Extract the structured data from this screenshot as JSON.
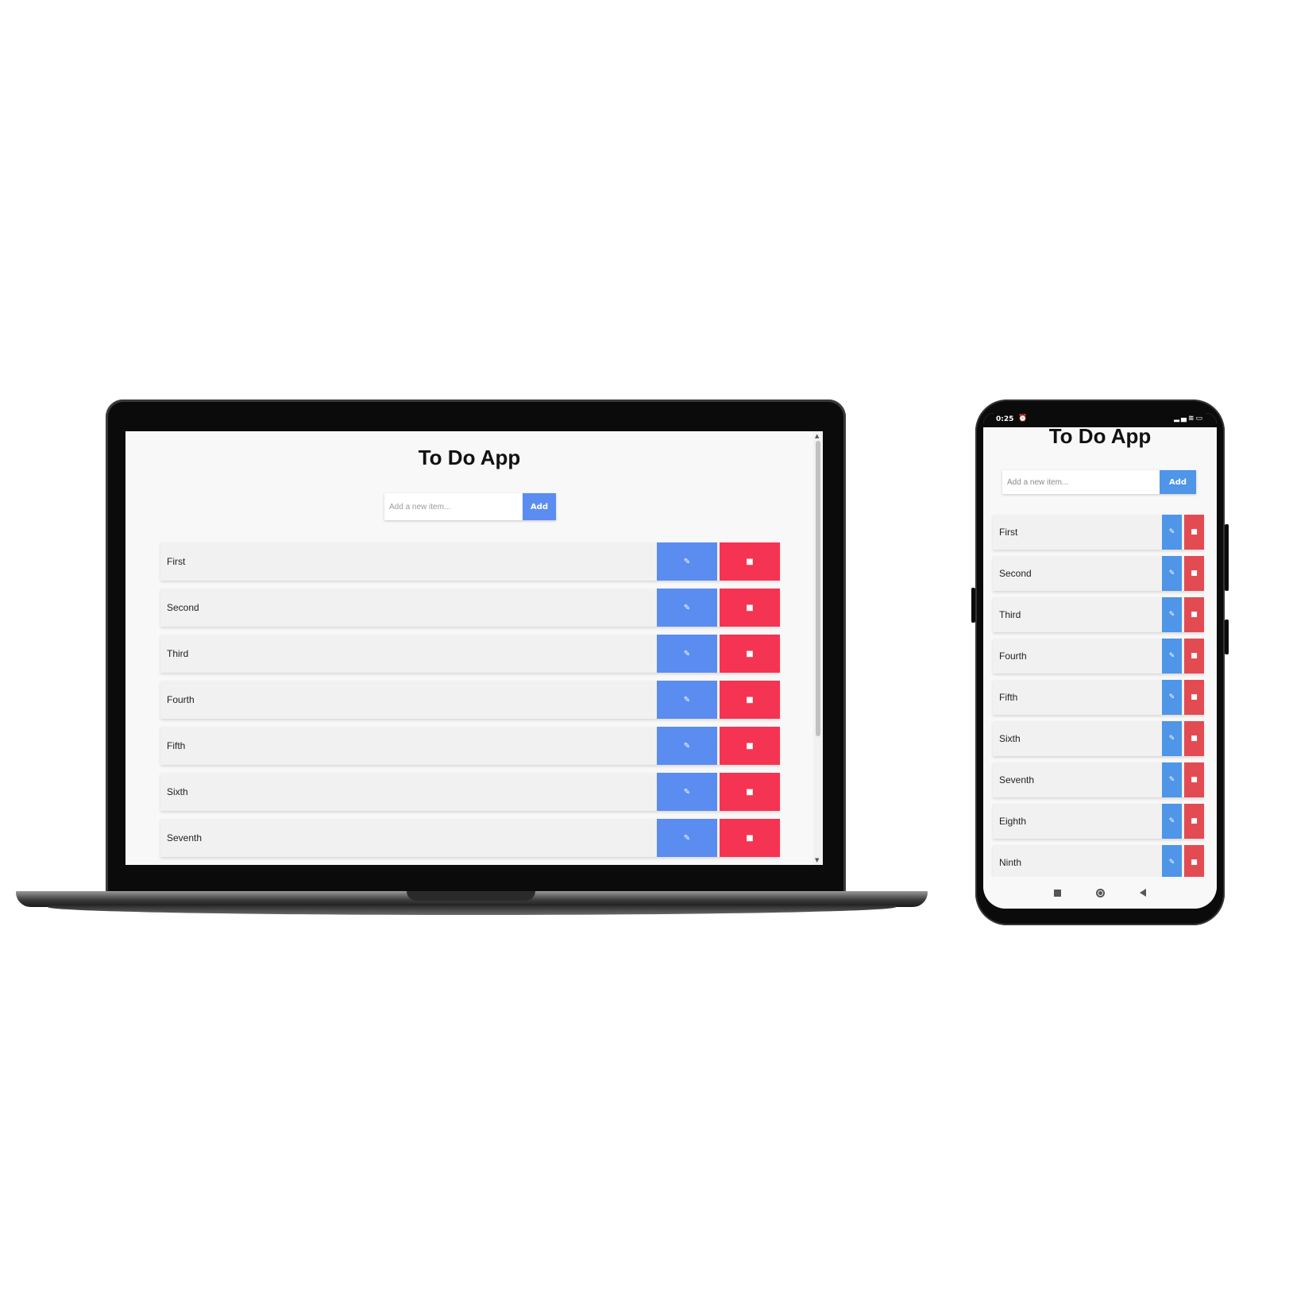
{
  "app": {
    "title": "To Do App",
    "add_placeholder": "Add a new item...",
    "add_label": "Add",
    "edit_icon": "edit-icon",
    "delete_icon": "trash-icon",
    "colors": {
      "edit": "#5b8cf0",
      "delete": "#f43452",
      "phone_edit": "#4f95e8",
      "phone_delete": "#e34b53"
    }
  },
  "laptop": {
    "items": [
      "First",
      "Second",
      "Third",
      "Fourth",
      "Fifth",
      "Sixth",
      "Seventh"
    ]
  },
  "phone": {
    "status": {
      "time": "0:25"
    },
    "items": [
      "First",
      "Second",
      "Third",
      "Fourth",
      "Fifth",
      "Sixth",
      "Seventh",
      "Eighth",
      "Ninth"
    ]
  }
}
